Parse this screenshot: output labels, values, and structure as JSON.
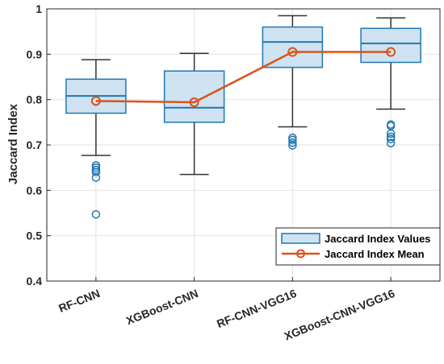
{
  "chart_data": {
    "type": "box",
    "categories": [
      "RF-CNN",
      "XGBoost-CNN",
      "RF-CNN-VGG16",
      "XGBoost-CNN-VGG16"
    ],
    "ylabel": "Jaccard Index",
    "xlabel": "",
    "ylim": [
      0.4,
      1.0
    ],
    "yticks": [
      0.4,
      0.5,
      0.6,
      0.7,
      0.8,
      0.9,
      1.0
    ],
    "ytick_labels": [
      "0.4",
      "0.5",
      "0.6",
      "0.7",
      "0.8",
      "0.9",
      "1"
    ],
    "grid": true,
    "legend_position": "bottom-right",
    "series": [
      {
        "name": "Jaccard Index Values",
        "kind": "boxplot",
        "boxes": [
          {
            "whisker_low": 0.677,
            "q1": 0.77,
            "median": 0.808,
            "q3": 0.845,
            "whisker_high": 0.888,
            "outliers": [
              0.655,
              0.65,
              0.645,
              0.64,
              0.628,
              0.547
            ]
          },
          {
            "whisker_low": 0.635,
            "q1": 0.75,
            "median": 0.782,
            "q3": 0.863,
            "whisker_high": 0.902,
            "outliers": []
          },
          {
            "whisker_low": 0.74,
            "q1": 0.871,
            "median": 0.927,
            "q3": 0.96,
            "whisker_high": 0.985,
            "outliers": [
              0.716,
              0.711,
              0.705,
              0.699
            ]
          },
          {
            "whisker_low": 0.779,
            "q1": 0.882,
            "median": 0.924,
            "q3": 0.957,
            "whisker_high": 0.98,
            "outliers": [
              0.745,
              0.742,
              0.725,
              0.718,
              0.713,
              0.704
            ]
          }
        ]
      },
      {
        "name": "Jaccard Index Mean",
        "kind": "line",
        "values": [
          0.797,
          0.794,
          0.905,
          0.905
        ]
      }
    ],
    "colors": {
      "box_fill": "#cfe2f1",
      "box_edge": "#1f77b4",
      "outlier": "#1f77b4",
      "whisker": "#333333",
      "mean_line": "#d95319",
      "grid": "#e2e2e2",
      "axis": "#262626"
    }
  }
}
